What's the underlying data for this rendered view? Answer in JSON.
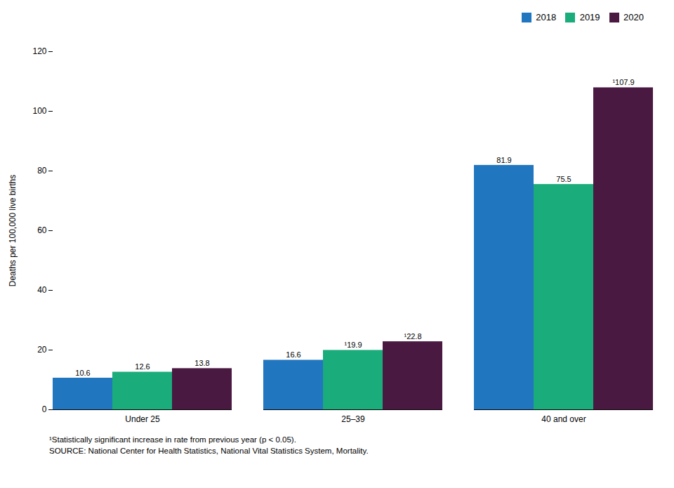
{
  "chart_data": {
    "type": "bar",
    "categories": [
      "Under 25",
      "25–39",
      "40 and over"
    ],
    "series": [
      {
        "name": "2018",
        "color": "#2176c0",
        "values": [
          10.6,
          16.6,
          81.9
        ],
        "value_labels": [
          "10.6",
          "16.6",
          "81.9"
        ]
      },
      {
        "name": "2019",
        "color": "#1aac7a",
        "values": [
          12.6,
          19.9,
          75.5
        ],
        "value_labels": [
          "12.6",
          "¹19.9",
          "75.5"
        ]
      },
      {
        "name": "2020",
        "color": "#4a1942",
        "values": [
          13.8,
          22.8,
          107.9
        ],
        "value_labels": [
          "13.8",
          "¹22.8",
          "¹107.9"
        ]
      }
    ],
    "ylabel": "Deaths per 100,000 live births",
    "ylim": [
      0,
      120
    ],
    "yticks": [
      0,
      20,
      40,
      60,
      80,
      100,
      120
    ],
    "data_labels": true,
    "grid": false,
    "legend": "upper right",
    "annotations": [
      "¹Statistically significant increase in rate from previous year (p < 0.05).",
      "SOURCE: National Center for Health Statistics, National Vital Statistics System, Mortality."
    ]
  }
}
